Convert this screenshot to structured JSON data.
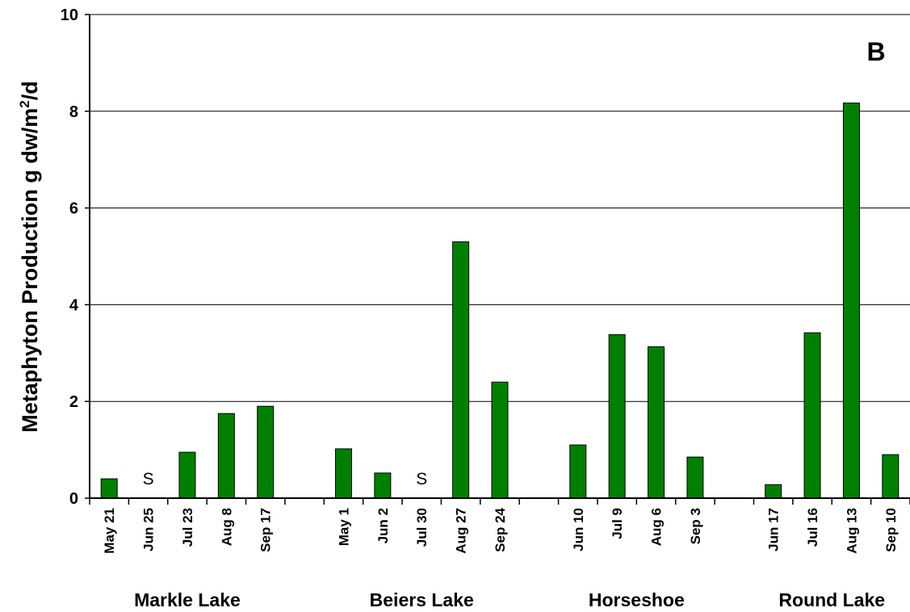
{
  "chart_data": {
    "type": "bar",
    "panel_label": "B",
    "ylabel": {
      "text": "Metaphyton Production g dw/m",
      "sup": "2",
      "suffix": "/d"
    },
    "categories": [
      "May 21",
      "Jun 25",
      "Jul 23",
      "Aug 8",
      "Sep 17",
      null,
      "May 1",
      "Jun 2",
      "Jul 30",
      "Aug 27",
      "Sep 24",
      null,
      "Jun 10",
      "Jul 9",
      "Aug 6",
      "Sep 3",
      null,
      "Jun 17",
      "Jul 16",
      "Aug 13",
      "Sep 10"
    ],
    "values": [
      0.4,
      null,
      0.95,
      1.75,
      1.9,
      null,
      1.02,
      0.52,
      null,
      5.3,
      2.4,
      null,
      1.1,
      3.38,
      3.13,
      0.85,
      null,
      0.28,
      3.42,
      8.17,
      0.9
    ],
    "annotations": [
      {
        "text": "S",
        "x": "Jun 25"
      },
      {
        "text": "S",
        "x": "Jul 30"
      }
    ],
    "groups": [
      {
        "label": "Markle Lake",
        "span": [
          0,
          4
        ]
      },
      {
        "label": "Beiers Lake",
        "span": [
          6,
          10
        ]
      },
      {
        "label": "Horseshoe",
        "span": [
          12,
          15
        ]
      },
      {
        "label": "Round Lake",
        "span": [
          17,
          20
        ]
      }
    ],
    "color": "#008000",
    "ylim": [
      0,
      10
    ],
    "yticks": [
      0,
      2,
      4,
      6,
      8,
      10
    ],
    "grid": true
  }
}
